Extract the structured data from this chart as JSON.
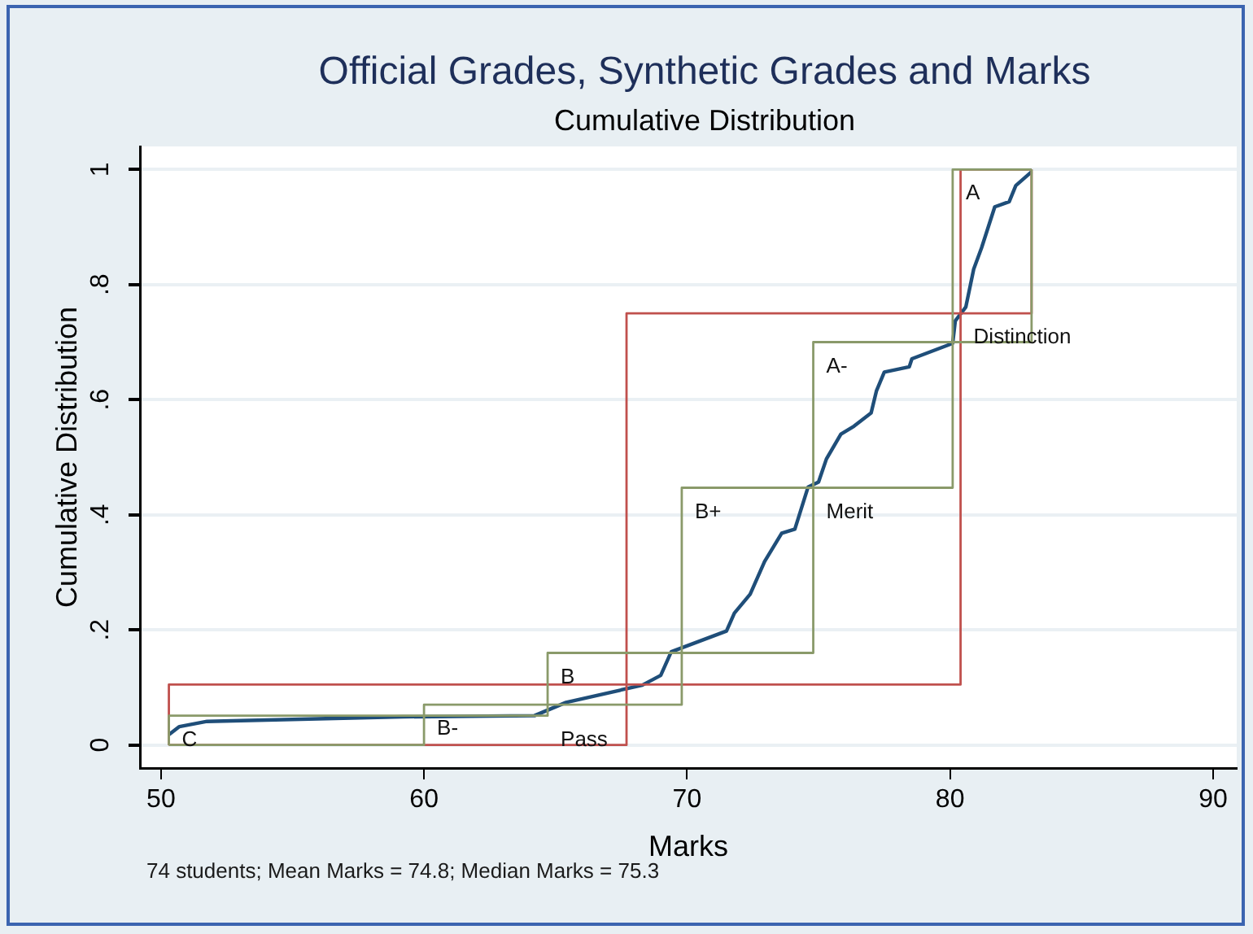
{
  "chart_data": {
    "type": "line",
    "title": "Official Grades, Synthetic Grades and Marks",
    "subtitle": "Cumulative Distribution",
    "xlabel": "Marks",
    "ylabel": "Cumulative Distribution",
    "xlim": [
      49.2,
      90.9
    ],
    "xticks": [
      50,
      60,
      70,
      80,
      90
    ],
    "ylim": [
      -0.04,
      1.04
    ],
    "yticks": [
      {
        "value": 0,
        "label": "0"
      },
      {
        "value": 0.2,
        "label": ".2"
      },
      {
        "value": 0.4,
        "label": ".4"
      },
      {
        "value": 0.6,
        "label": ".6"
      },
      {
        "value": 0.8,
        "label": ".8"
      },
      {
        "value": 1,
        "label": "1"
      }
    ],
    "grid": "y",
    "marker": "none",
    "series": [
      {
        "type": "line",
        "color": "#8a9a6a",
        "x": [
          50.3,
          50.3,
          60.0,
          60.0,
          64.7,
          64.7,
          69.8,
          69.8,
          74.8,
          74.8,
          80.1,
          80.1,
          83.1
        ],
        "values": [
          0,
          0.051,
          0.051,
          0.07,
          0.07,
          0.16,
          0.16,
          0.447,
          0.447,
          0.7,
          0.7,
          1,
          1
        ]
      },
      {
        "type": "line",
        "color": "#8a9a6a",
        "x": [
          50.3,
          60.0,
          60.0,
          64.7,
          64.7,
          69.8,
          69.8,
          74.8,
          74.8,
          80.1,
          80.1,
          83.1,
          83.1
        ],
        "values": [
          0,
          0,
          0.051,
          0.051,
          0.07,
          0.07,
          0.16,
          0.16,
          0.447,
          0.447,
          0.7,
          0.7,
          1
        ]
      },
      {
        "type": "line",
        "color": "#c0504d",
        "x": [
          50.3,
          50.3,
          67.7,
          67.7,
          80.4,
          80.4,
          83.1
        ],
        "values": [
          0,
          0.105,
          0.105,
          0.75,
          0.75,
          1,
          1
        ]
      },
      {
        "type": "line",
        "color": "#c0504d",
        "x": [
          50.3,
          67.7,
          67.7,
          80.4,
          80.4,
          83.1,
          83.1
        ],
        "values": [
          0,
          0,
          0.105,
          0.105,
          0.75,
          0.75,
          1
        ]
      },
      {
        "type": "line",
        "color": "#1f4e79",
        "x": [
          50.3,
          50.7,
          51.75,
          59.2,
          64.2,
          65.4,
          68.3,
          69.0,
          69.4,
          71.5,
          71.8,
          72.4,
          72.95,
          73.6,
          74.1,
          74.6,
          75.0,
          75.3,
          75.85,
          76.35,
          77.0,
          77.2,
          77.5,
          78.45,
          78.55,
          80.1,
          80.2,
          80.6,
          80.9,
          81.2,
          81.7,
          82.25,
          82.5,
          83.1
        ],
        "values": [
          0.018,
          0.032,
          0.041,
          0.049,
          0.051,
          0.074,
          0.104,
          0.121,
          0.162,
          0.198,
          0.229,
          0.262,
          0.319,
          0.368,
          0.375,
          0.448,
          0.457,
          0.497,
          0.54,
          0.554,
          0.577,
          0.615,
          0.648,
          0.657,
          0.671,
          0.698,
          0.737,
          0.761,
          0.827,
          0.864,
          0.935,
          0.944,
          0.972,
          0.996
        ]
      }
    ],
    "annotations": [
      {
        "text": "C",
        "x": 50.3,
        "y": 0.051
      },
      {
        "text": "B-",
        "x": 60.0,
        "y": 0.07
      },
      {
        "text": "B",
        "x": 64.7,
        "y": 0.16
      },
      {
        "text": "Pass",
        "x": 64.7,
        "y": 0.051
      },
      {
        "text": "B+",
        "x": 69.8,
        "y": 0.447
      },
      {
        "text": "Merit",
        "x": 74.8,
        "y": 0.447
      },
      {
        "text": "A-",
        "x": 74.8,
        "y": 0.7
      },
      {
        "text": "A",
        "x": 80.1,
        "y": 1
      },
      {
        "text": "Distinction",
        "x": 80.4,
        "y": 0.75
      },
      "74 students; Mean Marks = 74.8; Median Marks = 75.3"
    ]
  }
}
